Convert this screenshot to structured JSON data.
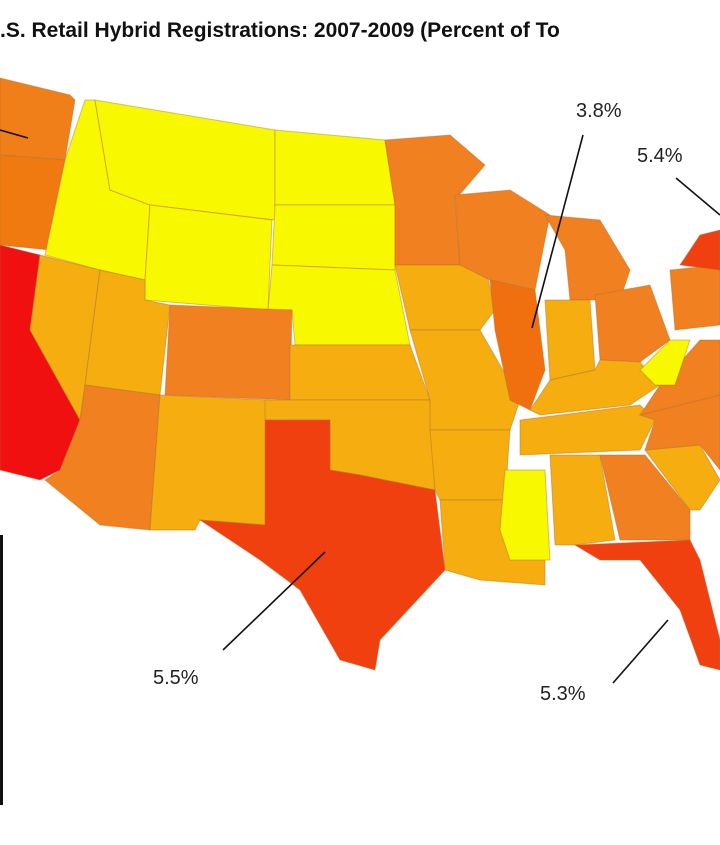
{
  "title": ".S. Retail Hybrid Registrations: 2007-2009 (Percent of To",
  "annotations": [
    {
      "label": "3.8%"
    },
    {
      "label": "5.4%"
    },
    {
      "label": "5.5%"
    },
    {
      "label": "5.3%"
    }
  ]
}
